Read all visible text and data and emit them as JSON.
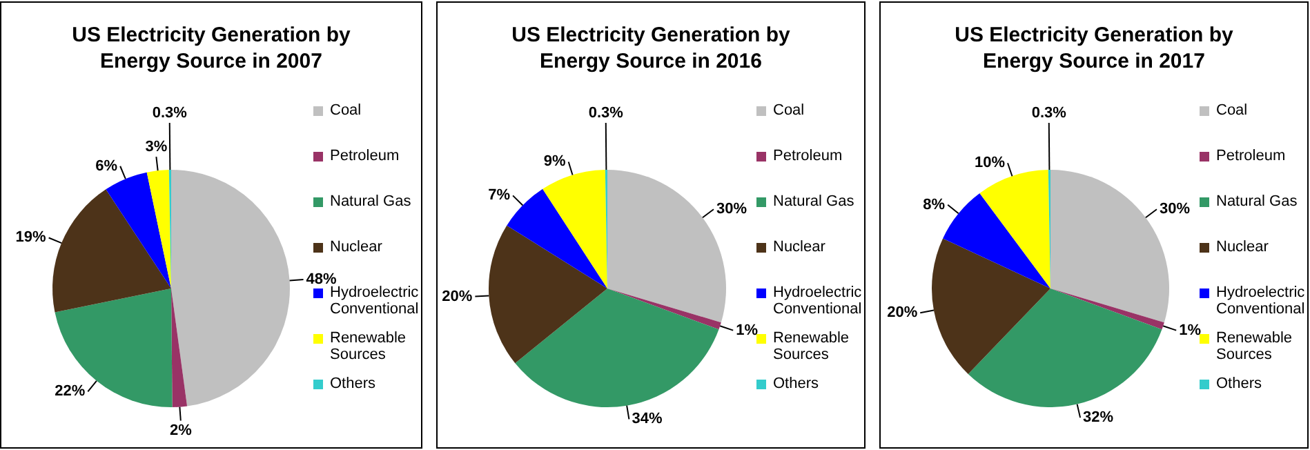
{
  "chart_data": [
    {
      "type": "pie",
      "title": "US Electricity Generation by Energy Source in 2007",
      "categories": [
        "Coal",
        "Petroleum",
        "Natural Gas",
        "Nuclear",
        "Hydroelectric Conventional",
        "Renewable Sources",
        "Others"
      ],
      "values": [
        48,
        2,
        22,
        19,
        6,
        3,
        0.3
      ],
      "value_labels": [
        "48%",
        "2%",
        "22%",
        "19%",
        "6%",
        "3%",
        "0.3%"
      ],
      "colors": [
        "#c0c0c0",
        "#993366",
        "#339966",
        "#4d3319",
        "#0000ff",
        "#ffff00",
        "#33cccc"
      ],
      "legend": "right"
    },
    {
      "type": "pie",
      "title": "US Electricity Generation by Energy Source in 2016",
      "categories": [
        "Coal",
        "Petroleum",
        "Natural Gas",
        "Nuclear",
        "Hydroelectric Conventional",
        "Renewable Sources",
        "Others"
      ],
      "values": [
        30,
        1,
        34,
        20,
        7,
        9,
        0.3
      ],
      "value_labels": [
        "30%",
        "1%",
        "34%",
        "20%",
        "7%",
        "9%",
        "0.3%"
      ],
      "colors": [
        "#c0c0c0",
        "#993366",
        "#339966",
        "#4d3319",
        "#0000ff",
        "#ffff00",
        "#33cccc"
      ],
      "legend": "right"
    },
    {
      "type": "pie",
      "title": "US Electricity Generation by Energy Source in 2017",
      "categories": [
        "Coal",
        "Petroleum",
        "Natural Gas",
        "Nuclear",
        "Hydroelectric Conventional",
        "Renewable Sources",
        "Others"
      ],
      "values": [
        30,
        1,
        32,
        20,
        8,
        10,
        0.3
      ],
      "value_labels": [
        "30%",
        "1%",
        "32%",
        "20%",
        "8%",
        "10%",
        "0.3%"
      ],
      "colors": [
        "#c0c0c0",
        "#993366",
        "#339966",
        "#4d3319",
        "#0000ff",
        "#ffff00",
        "#33cccc"
      ],
      "legend": "right"
    }
  ]
}
